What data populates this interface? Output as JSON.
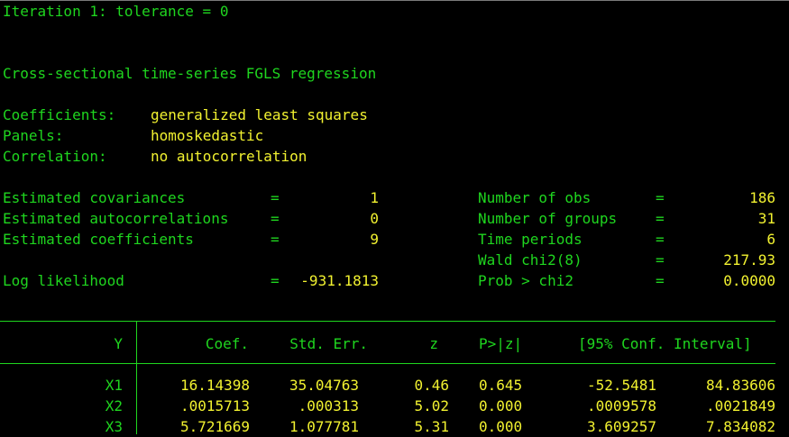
{
  "iteration": "Iteration 1: tolerance = 0",
  "title": "Cross-sectional time-series FGLS regression",
  "model_info": [
    {
      "label": "Coefficients:",
      "value": "generalized least squares"
    },
    {
      "label": "Panels:",
      "value": "homoskedastic"
    },
    {
      "label": "Correlation:",
      "value": "no autocorrelation"
    }
  ],
  "left_stats": [
    {
      "label": "Estimated covariances",
      "value": "1"
    },
    {
      "label": "Estimated autocorrelations",
      "value": "0"
    },
    {
      "label": "Estimated coefficients",
      "value": "9"
    },
    {
      "label": "Log likelihood",
      "value": "-931.1813"
    }
  ],
  "right_stats": [
    {
      "label": "Number of obs",
      "value": "186"
    },
    {
      "label": "Number of groups",
      "value": "31"
    },
    {
      "label": "Time periods",
      "value": "6"
    },
    {
      "label": "Wald chi2(8)",
      "value": "217.93"
    },
    {
      "label": "Prob > chi2",
      "value": "0.0000"
    }
  ],
  "equals": "=",
  "table": {
    "headers": {
      "var": "Y",
      "coef": "Coef.",
      "se": "Std. Err.",
      "z": "z",
      "p": "P>|z|",
      "ci": "[95% Conf. Interval]"
    },
    "rows": [
      {
        "var": "X1",
        "coef": "16.14398",
        "se": "35.04763",
        "z": "0.46",
        "p": "0.645",
        "lo": "-52.5481",
        "hi": "84.83606"
      },
      {
        "var": "X2",
        "coef": ".0015713",
        "se": ".000313",
        "z": "5.02",
        "p": "0.000",
        "lo": ".0009578",
        "hi": ".0021849"
      },
      {
        "var": "X3",
        "coef": "5.721669",
        "se": "1.077781",
        "z": "5.31",
        "p": "0.000",
        "lo": "3.609257",
        "hi": "7.834082"
      }
    ]
  },
  "colors": {
    "background": "#000000",
    "text_green": "#1fd61f",
    "text_yellow": "#f2f230"
  }
}
